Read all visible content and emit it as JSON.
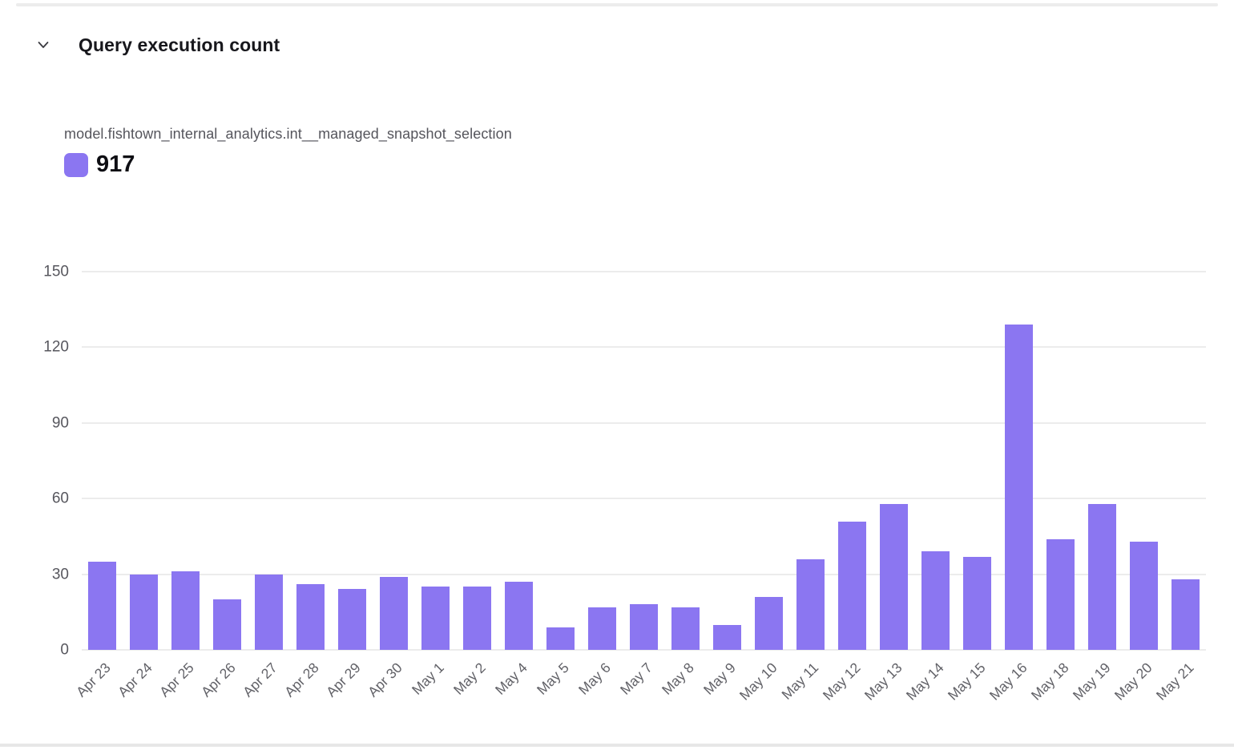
{
  "header": {
    "title": "Query execution count"
  },
  "legend": {
    "series_name": "model.fishtown_internal_analytics.int__managed_snapshot_selection",
    "total_label": "917",
    "swatch_color": "#8b76f1"
  },
  "colors": {
    "bar": "#8b76f1",
    "gridline": "#ececec",
    "title_text": "#17171c",
    "axis_text": "#57575e"
  },
  "chart_data": {
    "type": "bar",
    "title": "Query execution count",
    "series_label": "model.fishtown_internal_analytics.int__managed_snapshot_selection",
    "total": 917,
    "categories": [
      "Apr 23",
      "Apr 24",
      "Apr 25",
      "Apr 26",
      "Apr 27",
      "Apr 28",
      "Apr 29",
      "Apr 30",
      "May 1",
      "May 2",
      "May 4",
      "May 5",
      "May 6",
      "May 7",
      "May 8",
      "May 9",
      "May 10",
      "May 11",
      "May 12",
      "May 13",
      "May 14",
      "May 15",
      "May 16",
      "May 18",
      "May 19",
      "May 20",
      "May 21"
    ],
    "values": [
      35,
      30,
      31,
      20,
      30,
      26,
      24,
      29,
      25,
      25,
      27,
      9,
      17,
      18,
      17,
      10,
      21,
      36,
      51,
      58,
      39,
      37,
      129,
      44,
      58,
      43,
      28
    ],
    "xlabel": "",
    "ylabel": "",
    "ylim": [
      0,
      150
    ],
    "yticks": [
      0,
      30,
      60,
      90,
      120,
      150
    ],
    "grid": true,
    "bar_color": "#8b76f1",
    "legend_position": "top-left"
  }
}
